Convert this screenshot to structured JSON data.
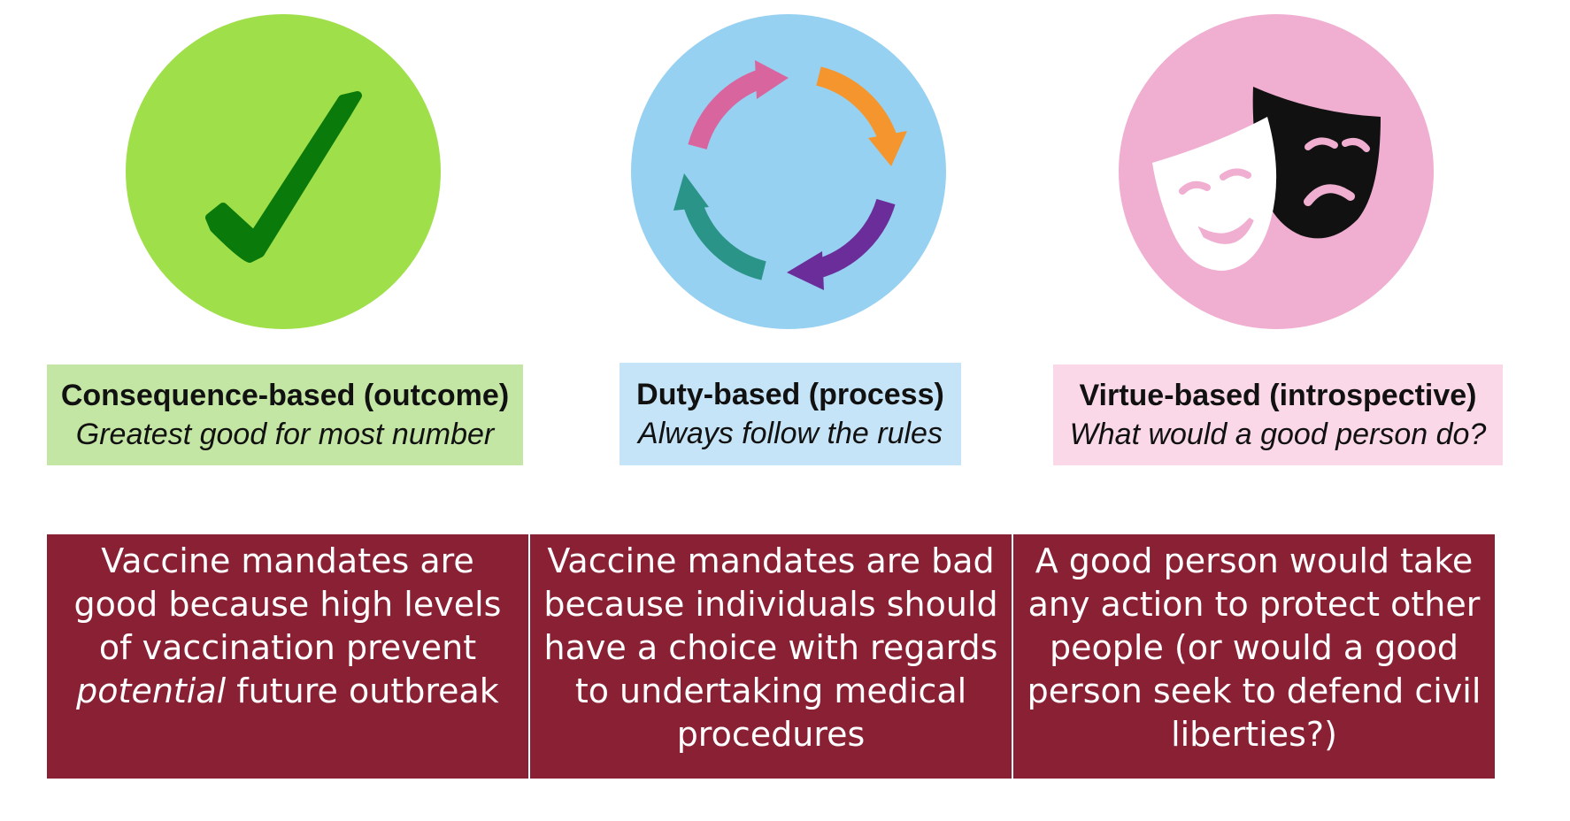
{
  "frameworks": [
    {
      "icon": "checkmark-icon",
      "circle_color": "#9fdf4a",
      "box_color": "#c4e6a4",
      "title": "Consequence-based (outcome)",
      "subtitle": "Greatest good for most number",
      "cell_text_before": "Vaccine mandates are good because high levels of vaccination prevent ",
      "cell_text_em": "potential",
      "cell_text_after": " future outbreak"
    },
    {
      "icon": "cycle-arrows-icon",
      "circle_color": "#97d1f1",
      "box_color": "#c6e4f7",
      "title": "Duty-based (process)",
      "subtitle": "Always follow the rules",
      "cell_text": "Vaccine mandates are bad because individuals should have a choice with regards to undertaking medical procedures"
    },
    {
      "icon": "theater-masks-icon",
      "circle_color": "#f0aed0",
      "box_color": "#fbd8e7",
      "title": "Virtue-based (introspective)",
      "subtitle": "What would a good person do?",
      "cell_text": "A good person would take any action to protect other people (or would a good person seek to defend civil liberties?)"
    }
  ],
  "colors": {
    "table_bg": "#8a2033",
    "check": "#0a7a0a",
    "arrow_pink": "#d9659e",
    "arrow_orange": "#f5952e",
    "arrow_purple": "#6a2d9a",
    "arrow_teal": "#2a9488"
  }
}
